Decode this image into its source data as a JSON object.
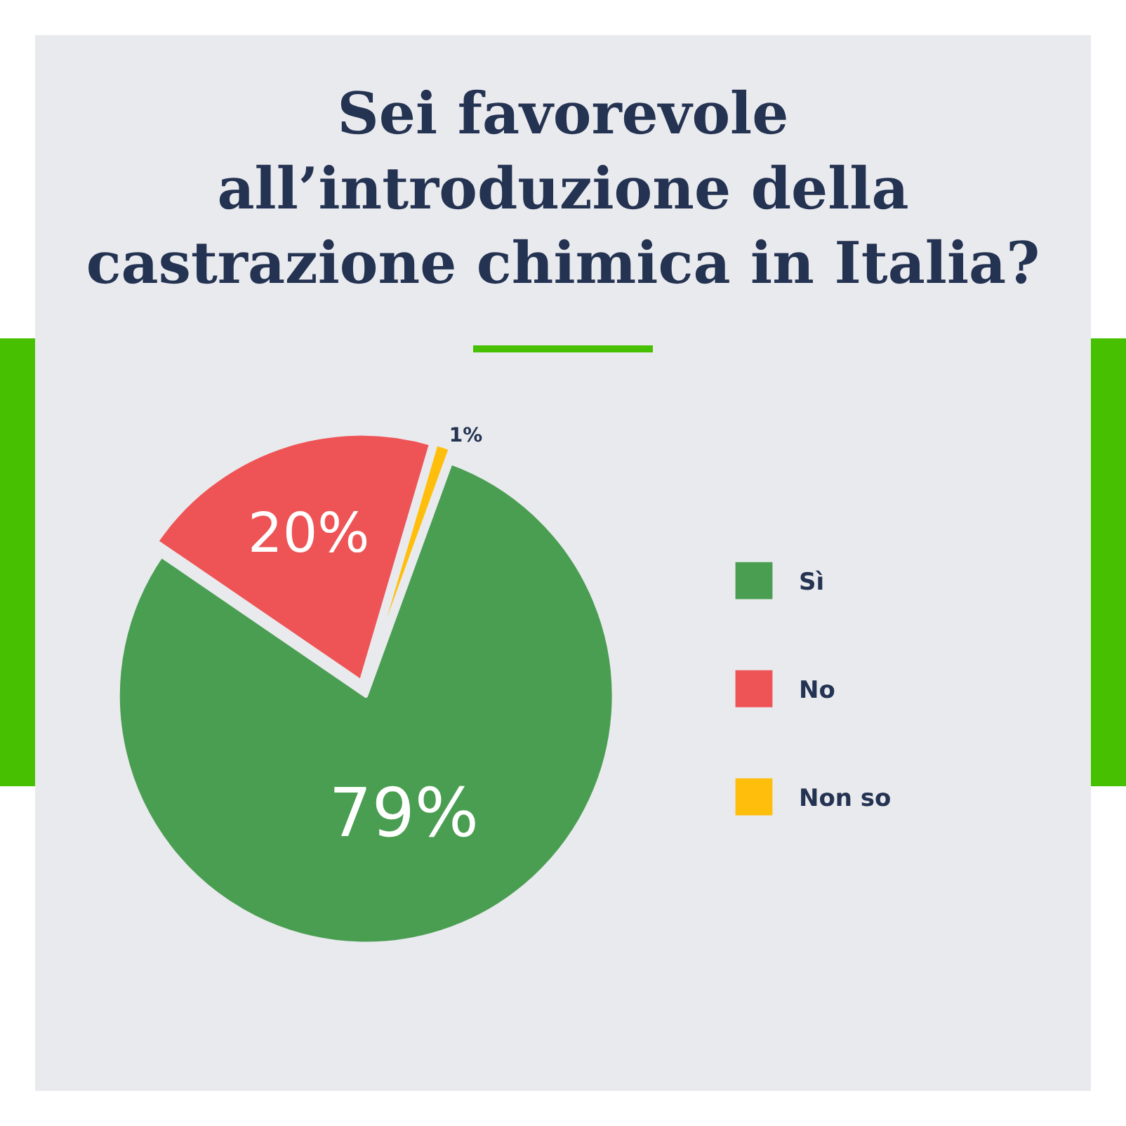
{
  "chart_data": {
    "type": "pie",
    "title": "Sei favorevole all’introduzione della castrazione chimica in Italia?",
    "categories": [
      "Sì",
      "No",
      "Non so"
    ],
    "values": [
      79,
      20,
      1
    ],
    "colors": [
      "#4a9e51",
      "#ee5455",
      "#ffbe0b"
    ],
    "value_labels": [
      "79%",
      "20%",
      "1%"
    ],
    "legend": "right"
  }
}
